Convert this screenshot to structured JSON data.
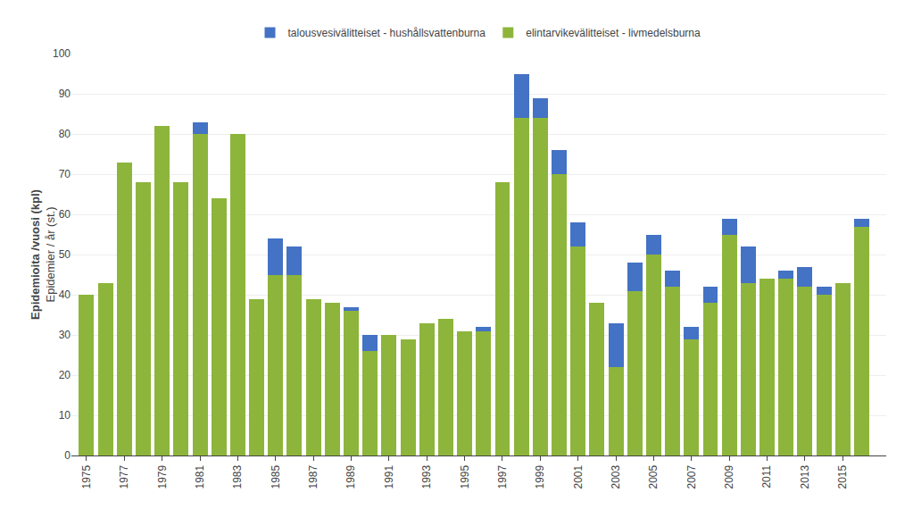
{
  "chart_data": {
    "type": "bar",
    "stacked": true,
    "x": [
      1975,
      1976,
      1977,
      1978,
      1979,
      1980,
      1981,
      1982,
      1983,
      1984,
      1985,
      1986,
      1987,
      1988,
      1989,
      1990,
      1991,
      1992,
      1993,
      1994,
      1995,
      1996,
      1997,
      1998,
      1999,
      2000,
      2001,
      2002,
      2003,
      2004,
      2005,
      2006,
      2007,
      2008,
      2009,
      2010,
      2011,
      2012,
      2013,
      2014,
      2015,
      2016
    ],
    "series": [
      {
        "name": "elintarvikevälitteiset - livmedelsburna",
        "color": "#8db53b",
        "values": [
          40,
          43,
          73,
          68,
          82,
          68,
          80,
          64,
          80,
          39,
          45,
          45,
          39,
          38,
          36,
          26,
          30,
          29,
          33,
          34,
          31,
          31,
          68,
          84,
          84,
          70,
          52,
          38,
          22,
          41,
          50,
          42,
          29,
          38,
          55,
          43,
          44,
          44,
          42,
          40,
          43,
          57
        ]
      },
      {
        "name": "talousvesivälitteiset - hushållsvattenburna",
        "color": "#4472c4",
        "values": [
          0,
          0,
          0,
          0,
          0,
          0,
          3,
          0,
          0,
          0,
          9,
          7,
          0,
          0,
          1,
          4,
          0,
          0,
          0,
          0,
          0,
          1,
          0,
          11,
          5,
          6,
          6,
          0,
          11,
          7,
          5,
          4,
          3,
          4,
          4,
          9,
          0,
          2,
          5,
          2,
          0,
          2
        ]
      }
    ],
    "y_label": "Epidemioita /vuosi (kpl)\nEpidemier / år (st.)",
    "xlim": [
      1974.2,
      2017.3
    ],
    "xticks": [
      1975,
      1977,
      1979,
      1981,
      1983,
      1985,
      1987,
      1989,
      1991,
      1993,
      1995,
      1997,
      1999,
      2001,
      2003,
      2005,
      2007,
      2009,
      2011,
      2013,
      2015
    ],
    "ylim": [
      0,
      100
    ],
    "yticks": [
      0,
      10,
      20,
      30,
      40,
      50,
      60,
      70,
      80,
      90,
      100
    ],
    "grid": true,
    "legend": "top"
  }
}
